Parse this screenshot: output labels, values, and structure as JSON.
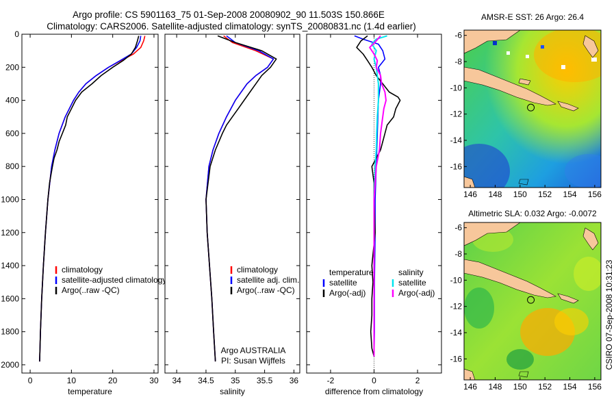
{
  "header": {
    "line1": "Argo profile: CS 5901163_75 01-Sep-2008 20080902_90 11.503S 150.866E",
    "line2": "Climatology: CARS2006. Satellite-adjusted climatology: synTS_20080831.nc (1.4d earlier)"
  },
  "side_label": "CSIRO 07-Sep-2008 10:31:23",
  "colors": {
    "clim": "#ff0000",
    "sat": "#0000ff",
    "argo": "#000000",
    "sal_sat": "#00e5ee",
    "sal_argo": "#ff00ff",
    "land": "#f7c79b"
  },
  "chart_data": [
    {
      "id": "temperature",
      "type": "line",
      "xlabel": "temperature",
      "xlim": [
        -2,
        31
      ],
      "ylim": [
        0,
        2050
      ],
      "y_inverted": true,
      "xticks": [
        0,
        10,
        20,
        30
      ],
      "yticks": [
        0,
        200,
        400,
        600,
        800,
        1000,
        1200,
        1400,
        1600,
        1800,
        2000
      ],
      "legend": [
        "climatology",
        "satellite-adjusted climatology",
        "Argo(..raw -QC)"
      ],
      "series": [
        {
          "name": "climatology",
          "color": "#ff0000",
          "depth": [
            10,
            40,
            80,
            120,
            160,
            200,
            250,
            300,
            350,
            400,
            500,
            600,
            700,
            800,
            1000,
            1200,
            1400,
            1600,
            1800,
            1980
          ],
          "values": [
            27.8,
            27.5,
            26.8,
            25.0,
            22.0,
            19.0,
            16.0,
            13.5,
            11.8,
            10.5,
            8.5,
            7.0,
            6.0,
            5.2,
            4.3,
            3.7,
            3.2,
            2.8,
            2.5,
            2.3
          ]
        },
        {
          "name": "satellite-adjusted climatology",
          "color": "#0000ff",
          "depth": [
            10,
            40,
            80,
            120,
            160,
            200,
            250,
            300,
            350,
            400,
            500,
            600,
            700,
            800,
            1000,
            1200,
            1400,
            1600,
            1800,
            1980
          ],
          "values": [
            26.8,
            26.6,
            25.8,
            24.5,
            21.8,
            19.0,
            16.0,
            13.5,
            11.8,
            10.5,
            8.5,
            7.0,
            6.0,
            5.2,
            4.3,
            3.7,
            3.2,
            2.8,
            2.5,
            2.3
          ]
        },
        {
          "name": "Argo(..raw -QC)",
          "color": "#000000",
          "depth": [
            10,
            40,
            80,
            120,
            160,
            200,
            250,
            300,
            350,
            400,
            450,
            500,
            550,
            600,
            650,
            700,
            750,
            800,
            900,
            1000,
            1200,
            1400,
            1600,
            1800,
            1980
          ],
          "values": [
            26.3,
            26.0,
            25.5,
            24.5,
            22.5,
            20.0,
            17.2,
            15.0,
            12.5,
            11.0,
            10.0,
            9.0,
            8.6,
            7.8,
            7.0,
            6.5,
            5.8,
            5.4,
            4.7,
            4.3,
            3.7,
            3.2,
            2.8,
            2.5,
            2.3
          ]
        }
      ]
    },
    {
      "id": "salinity",
      "type": "line",
      "xlabel": "salinity",
      "xlim": [
        33.8,
        36.1
      ],
      "ylim": [
        0,
        2050
      ],
      "y_inverted": true,
      "xticks": [
        34,
        34.5,
        35,
        35.5,
        36
      ],
      "legend": [
        "climatology",
        "satellite adj. clim.",
        "Argo(..raw -QC)"
      ],
      "annotation": [
        "Argo AUSTRALIA",
        "PI: Susan Wijffels"
      ],
      "series": [
        {
          "name": "climatology",
          "color": "#ff0000",
          "depth": [
            10,
            50,
            100,
            150,
            200,
            250,
            300,
            400,
            500,
            600,
            700,
            800,
            1000,
            1200,
            1400,
            1600,
            1800,
            1980
          ],
          "values": [
            34.8,
            34.95,
            35.35,
            35.65,
            35.55,
            35.35,
            35.2,
            35.0,
            34.85,
            34.72,
            34.62,
            34.55,
            34.5,
            34.52,
            34.56,
            34.6,
            34.63,
            34.66
          ]
        },
        {
          "name": "satellite adj. clim.",
          "color": "#0000ff",
          "depth": [
            10,
            50,
            100,
            150,
            200,
            250,
            300,
            400,
            500,
            600,
            700,
            800,
            1000,
            1200,
            1400,
            1600,
            1800,
            1980
          ],
          "values": [
            34.85,
            35.0,
            35.4,
            35.65,
            35.55,
            35.35,
            35.2,
            35.0,
            34.85,
            34.72,
            34.62,
            34.55,
            34.5,
            34.52,
            34.56,
            34.6,
            34.63,
            34.66
          ]
        },
        {
          "name": "Argo(..raw -QC)",
          "color": "#000000",
          "depth": [
            10,
            50,
            100,
            150,
            200,
            250,
            300,
            350,
            400,
            450,
            500,
            550,
            600,
            700,
            800,
            1000,
            1200,
            1400,
            1600,
            1800,
            1980
          ],
          "values": [
            34.7,
            35.0,
            35.45,
            35.7,
            35.6,
            35.45,
            35.35,
            35.25,
            35.15,
            35.05,
            34.95,
            34.85,
            34.78,
            34.66,
            34.57,
            34.5,
            34.52,
            34.56,
            34.6,
            34.63,
            34.66
          ]
        }
      ]
    },
    {
      "id": "difference",
      "type": "line",
      "xlabel": "difference from climatology",
      "xlim": [
        -3.1,
        3.1
      ],
      "ylim": [
        0,
        2050
      ],
      "y_inverted": true,
      "xticks": [
        -2,
        0,
        2
      ],
      "legend_temperature": [
        "temperature",
        "satellite",
        "Argo(-adj)"
      ],
      "legend_salinity": [
        "salinity",
        "satellite",
        "Argo(-adj)"
      ],
      "series": [
        {
          "name": "temperature satellite",
          "color": "#0000ff",
          "depth": [
            10,
            30,
            60,
            100,
            150,
            200,
            250,
            300,
            400,
            600,
            800,
            1000,
            1200,
            1500,
            1800,
            1950
          ],
          "values": [
            -0.9,
            -0.5,
            0.2,
            0.4,
            0.5,
            0.2,
            0.3,
            0.3,
            0.2,
            0.15,
            0.1,
            0.05,
            0.05,
            0.02,
            0.02,
            0.0
          ]
        },
        {
          "name": "temperature Argo(-adj)",
          "color": "#000000",
          "depth": [
            10,
            40,
            80,
            120,
            160,
            200,
            250,
            300,
            350,
            380,
            400,
            450,
            500,
            550,
            600,
            650,
            700,
            750,
            800,
            900,
            1000,
            1200,
            1400,
            1500,
            1600,
            1700,
            1800,
            1900,
            1950
          ],
          "values": [
            -0.3,
            -0.6,
            -0.8,
            -0.5,
            -0.3,
            -0.1,
            0.1,
            0.4,
            0.7,
            1.1,
            1.2,
            1.0,
            0.9,
            0.6,
            0.5,
            0.4,
            0.3,
            0.1,
            -0.1,
            0.0,
            0.0,
            0.05,
            -0.1,
            -0.05,
            -0.1,
            -0.1,
            -0.15,
            -0.1,
            0.0
          ]
        },
        {
          "name": "salinity satellite",
          "color": "#00e5ee",
          "depth": [
            10,
            30,
            60,
            100,
            150,
            200,
            300,
            400,
            500,
            600,
            700,
            800,
            1000,
            1200,
            1500,
            1800,
            1950
          ],
          "values": [
            0.6,
            0.1,
            -0.1,
            0.1,
            0.0,
            0.1,
            0.2,
            0.2,
            0.15,
            0.12,
            0.1,
            0.05,
            0.0,
            0.0,
            0.0,
            0.0,
            0.0
          ]
        },
        {
          "name": "salinity Argo(-adj)",
          "color": "#ff00ff",
          "depth": [
            10,
            40,
            80,
            120,
            160,
            200,
            250,
            300,
            350,
            400,
            450,
            500,
            550,
            600,
            700,
            800,
            1000,
            1200,
            1400,
            1600,
            1800,
            1950
          ],
          "values": [
            0.3,
            0.1,
            -0.2,
            0.0,
            0.15,
            0.1,
            0.3,
            0.35,
            0.5,
            0.55,
            0.45,
            0.4,
            0.35,
            0.3,
            0.25,
            0.1,
            0.0,
            0.0,
            0.0,
            0.0,
            0.0,
            0.0
          ]
        }
      ]
    },
    {
      "id": "sst_map",
      "type": "heatmap",
      "title": "AMSR-E SST: 26 Argo: 26.4",
      "xlim": [
        145.5,
        156.5
      ],
      "ylim": [
        -17.6,
        -5.6
      ],
      "xticks": [
        146,
        148,
        150,
        152,
        154,
        156
      ],
      "yticks": [
        -6,
        -8,
        -10,
        -12,
        -14,
        -16
      ],
      "marker": [
        150.866,
        -11.503
      ]
    },
    {
      "id": "sla_map",
      "type": "heatmap",
      "title": "Altimetric SLA: 0.032 Argo: -0.0072",
      "xlim": [
        145.5,
        156.5
      ],
      "ylim": [
        -17.6,
        -5.6
      ],
      "xticks": [
        146,
        148,
        150,
        152,
        154,
        156
      ],
      "yticks": [
        -6,
        -8,
        -10,
        -12,
        -14,
        -16
      ],
      "marker": [
        150.866,
        -11.503
      ]
    }
  ]
}
